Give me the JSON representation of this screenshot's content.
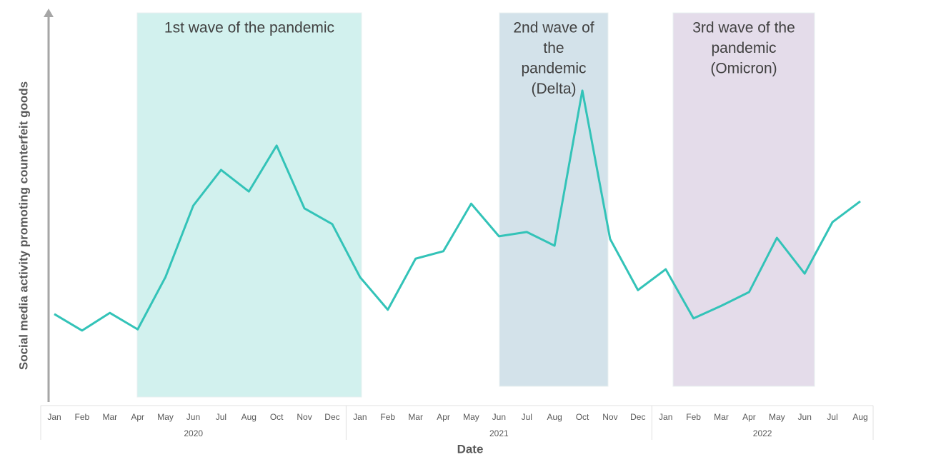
{
  "chart_data": {
    "type": "line",
    "y_label": "Social media activity promoting counterfeit goods",
    "x_label": "Date",
    "categories": [
      "Jan",
      "Feb",
      "Mar",
      "Apr",
      "May",
      "Jun",
      "Jul",
      "Aug",
      "Oct",
      "Nov",
      "Dec",
      "Jan",
      "Feb",
      "Mar",
      "Apr",
      "May",
      "Jun",
      "Jul",
      "Aug",
      "Oct",
      "Nov",
      "Dec",
      "Jan",
      "Feb",
      "Mar",
      "Apr",
      "May",
      "Jun",
      "Jul",
      "Aug"
    ],
    "groups": [
      "2020",
      "2021",
      "2022"
    ],
    "series": [
      {
        "color": "#33c3b8",
        "values": [
          22.4,
          18.2,
          22.7,
          18.5,
          31.8,
          50,
          59.1,
          53.6,
          65.3,
          49.3,
          45.3,
          31.8,
          23.5,
          36.5,
          38.4,
          50.5,
          42.2,
          43.3,
          39.8,
          79.3,
          41.5,
          28.5,
          33.8,
          21.3,
          24.5,
          28,
          41.8,
          32.7,
          45.8,
          51.1
        ]
      }
    ],
    "ylim": [
      0,
      100
    ],
    "waves": [
      {
        "lines": [
          "1st wave of the pandemic"
        ],
        "color": "#d2f1ee"
      },
      {
        "lines": [
          "2nd wave of",
          "the",
          "pandemic",
          "(Delta)"
        ],
        "color": "#d3e2ea"
      },
      {
        "lines": [
          "3rd wave of the",
          "pandemic",
          "(Omicron)"
        ],
        "color": "#e4dcea"
      }
    ]
  }
}
